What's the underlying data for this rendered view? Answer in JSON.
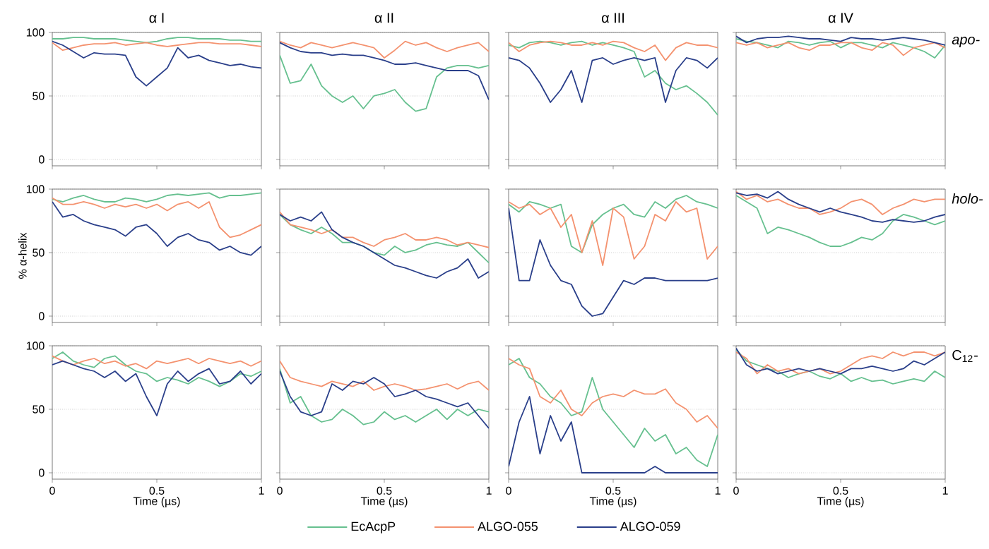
{
  "chart_data": [
    {
      "type": "line",
      "title": "α I",
      "x": [
        0,
        0.05,
        0.1,
        0.15,
        0.2,
        0.25,
        0.3,
        0.35,
        0.4,
        0.45,
        0.5,
        0.55,
        0.6,
        0.65,
        0.7,
        0.75,
        0.8,
        0.85,
        0.9,
        0.95,
        1
      ],
      "xlim": [
        0,
        1
      ],
      "xticks": [
        0,
        0.5,
        1
      ],
      "ylim": [
        -5,
        100
      ],
      "yticks": [
        0,
        50,
        100
      ],
      "grid": "y",
      "tick_labels": "y",
      "series": [
        {
          "color": "#66c08f",
          "values": [
            95,
            95,
            96,
            96,
            95,
            95,
            95,
            94,
            93,
            92,
            93,
            95,
            96,
            96,
            95,
            95,
            95,
            94,
            94,
            93,
            93
          ]
        },
        {
          "color": "#f4926f",
          "values": [
            92,
            86,
            88,
            90,
            91,
            91,
            92,
            90,
            91,
            92,
            90,
            89,
            90,
            91,
            92,
            92,
            91,
            91,
            91,
            90,
            89
          ]
        },
        {
          "color": "#2a3f8a",
          "values": [
            93,
            90,
            85,
            80,
            84,
            83,
            83,
            82,
            65,
            58,
            65,
            72,
            88,
            80,
            82,
            78,
            76,
            74,
            75,
            73,
            72
          ]
        }
      ]
    },
    {
      "type": "line",
      "title": "α II",
      "x": [
        0,
        0.05,
        0.1,
        0.15,
        0.2,
        0.25,
        0.3,
        0.35,
        0.4,
        0.45,
        0.5,
        0.55,
        0.6,
        0.65,
        0.7,
        0.75,
        0.8,
        0.85,
        0.9,
        0.95,
        1
      ],
      "xlim": [
        0,
        1
      ],
      "xticks": [
        0,
        0.5,
        1
      ],
      "ylim": [
        -5,
        100
      ],
      "yticks": [
        0,
        50,
        100
      ],
      "grid": "y",
      "tick_labels": false,
      "series": [
        {
          "color": "#66c08f",
          "values": [
            82,
            60,
            62,
            75,
            58,
            50,
            45,
            50,
            40,
            50,
            52,
            55,
            45,
            38,
            40,
            65,
            72,
            74,
            74,
            72,
            74
          ]
        },
        {
          "color": "#f4926f",
          "values": [
            93,
            90,
            88,
            92,
            90,
            88,
            90,
            92,
            90,
            88,
            80,
            86,
            93,
            90,
            92,
            88,
            85,
            88,
            90,
            92,
            85
          ]
        },
        {
          "color": "#2a3f8a",
          "values": [
            92,
            88,
            85,
            84,
            84,
            82,
            83,
            82,
            82,
            80,
            78,
            75,
            75,
            76,
            74,
            72,
            70,
            70,
            70,
            66,
            47
          ]
        }
      ]
    },
    {
      "type": "line",
      "title": "α III",
      "x": [
        0,
        0.05,
        0.1,
        0.15,
        0.2,
        0.25,
        0.3,
        0.35,
        0.4,
        0.45,
        0.5,
        0.55,
        0.6,
        0.65,
        0.7,
        0.75,
        0.8,
        0.85,
        0.9,
        0.95,
        1
      ],
      "xlim": [
        0,
        1
      ],
      "xticks": [
        0,
        0.5,
        1
      ],
      "ylim": [
        -5,
        100
      ],
      "yticks": [
        0,
        50,
        100
      ],
      "grid": "y",
      "tick_labels": false,
      "series": [
        {
          "color": "#66c08f",
          "values": [
            90,
            88,
            92,
            93,
            92,
            90,
            92,
            93,
            90,
            92,
            90,
            88,
            85,
            65,
            70,
            60,
            55,
            58,
            52,
            45,
            35
          ]
        },
        {
          "color": "#f4926f",
          "values": [
            92,
            85,
            90,
            92,
            93,
            92,
            90,
            90,
            92,
            90,
            93,
            92,
            88,
            85,
            90,
            78,
            88,
            92,
            90,
            90,
            88
          ]
        },
        {
          "color": "#2a3f8a",
          "values": [
            80,
            78,
            72,
            60,
            45,
            55,
            70,
            45,
            78,
            80,
            75,
            78,
            80,
            78,
            80,
            45,
            70,
            80,
            78,
            72,
            80
          ]
        }
      ]
    },
    {
      "type": "line",
      "title": "α IV",
      "annotations": [
        "*apo-*"
      ],
      "x": [
        0,
        0.05,
        0.1,
        0.15,
        0.2,
        0.25,
        0.3,
        0.35,
        0.4,
        0.45,
        0.5,
        0.55,
        0.6,
        0.65,
        0.7,
        0.75,
        0.8,
        0.85,
        0.9,
        0.95,
        1
      ],
      "xlim": [
        0,
        1
      ],
      "xticks": [
        0,
        0.5,
        1
      ],
      "ylim": [
        -5,
        100
      ],
      "yticks": [
        0,
        50,
        100
      ],
      "grid": "y",
      "tick_labels": false,
      "series": [
        {
          "color": "#66c08f",
          "values": [
            95,
            93,
            92,
            90,
            88,
            93,
            92,
            90,
            92,
            93,
            88,
            92,
            92,
            90,
            88,
            92,
            90,
            88,
            85,
            80,
            90
          ]
        },
        {
          "color": "#f4926f",
          "values": [
            92,
            90,
            92,
            88,
            90,
            92,
            88,
            86,
            90,
            90,
            92,
            92,
            88,
            86,
            92,
            90,
            82,
            88,
            90,
            92,
            88
          ]
        },
        {
          "color": "#2a3f8a",
          "values": [
            97,
            92,
            95,
            96,
            96,
            97,
            96,
            95,
            95,
            94,
            93,
            96,
            95,
            95,
            94,
            95,
            96,
            95,
            94,
            92,
            90
          ]
        }
      ]
    },
    {
      "type": "line",
      "ylabel": "% α-helix",
      "x": [
        0,
        0.05,
        0.1,
        0.15,
        0.2,
        0.25,
        0.3,
        0.35,
        0.4,
        0.45,
        0.5,
        0.55,
        0.6,
        0.65,
        0.7,
        0.75,
        0.8,
        0.85,
        0.9,
        0.95,
        1
      ],
      "xlim": [
        0,
        1
      ],
      "xticks": [
        0,
        0.5,
        1
      ],
      "ylim": [
        -5,
        100
      ],
      "yticks": [
        0,
        50,
        100
      ],
      "grid": "y",
      "tick_labels": "y",
      "series": [
        {
          "color": "#66c08f",
          "values": [
            92,
            90,
            93,
            95,
            92,
            90,
            90,
            93,
            92,
            90,
            92,
            95,
            96,
            95,
            96,
            97,
            93,
            95,
            95,
            96,
            97
          ]
        },
        {
          "color": "#f4926f",
          "values": [
            93,
            88,
            88,
            90,
            88,
            85,
            88,
            86,
            88,
            85,
            88,
            83,
            88,
            90,
            85,
            90,
            70,
            62,
            64,
            68,
            72
          ]
        },
        {
          "color": "#2a3f8a",
          "values": [
            90,
            78,
            80,
            75,
            72,
            70,
            68,
            63,
            70,
            72,
            65,
            55,
            62,
            65,
            60,
            58,
            52,
            55,
            50,
            48,
            55
          ]
        }
      ]
    },
    {
      "type": "line",
      "x": [
        0,
        0.05,
        0.1,
        0.15,
        0.2,
        0.25,
        0.3,
        0.35,
        0.4,
        0.45,
        0.5,
        0.55,
        0.6,
        0.65,
        0.7,
        0.75,
        0.8,
        0.85,
        0.9,
        0.95,
        1
      ],
      "xlim": [
        0,
        1
      ],
      "xticks": [
        0,
        0.5,
        1
      ],
      "ylim": [
        -5,
        100
      ],
      "yticks": [
        0,
        50,
        100
      ],
      "grid": "y",
      "tick_labels": false,
      "series": [
        {
          "color": "#66c08f",
          "values": [
            80,
            72,
            68,
            65,
            70,
            65,
            58,
            58,
            55,
            50,
            48,
            55,
            50,
            52,
            56,
            58,
            56,
            55,
            58,
            50,
            42
          ]
        },
        {
          "color": "#f4926f",
          "values": [
            82,
            72,
            70,
            68,
            65,
            68,
            62,
            62,
            58,
            55,
            60,
            62,
            65,
            60,
            60,
            62,
            60,
            56,
            58,
            56,
            54
          ]
        },
        {
          "color": "#2a3f8a",
          "values": [
            80,
            75,
            78,
            75,
            82,
            68,
            62,
            58,
            55,
            50,
            45,
            40,
            38,
            35,
            32,
            30,
            35,
            38,
            45,
            30,
            35
          ]
        }
      ]
    },
    {
      "type": "line",
      "x": [
        0,
        0.05,
        0.1,
        0.15,
        0.2,
        0.25,
        0.3,
        0.35,
        0.4,
        0.45,
        0.5,
        0.55,
        0.6,
        0.65,
        0.7,
        0.75,
        0.8,
        0.85,
        0.9,
        0.95,
        1
      ],
      "xlim": [
        0,
        1
      ],
      "xticks": [
        0,
        0.5,
        1
      ],
      "ylim": [
        -5,
        100
      ],
      "yticks": [
        0,
        50,
        100
      ],
      "grid": "y",
      "tick_labels": false,
      "series": [
        {
          "color": "#66c08f",
          "values": [
            88,
            82,
            90,
            88,
            85,
            88,
            55,
            50,
            72,
            80,
            85,
            88,
            80,
            78,
            90,
            85,
            92,
            95,
            90,
            88,
            85
          ]
        },
        {
          "color": "#f4926f",
          "values": [
            90,
            85,
            88,
            80,
            85,
            70,
            80,
            50,
            75,
            40,
            85,
            78,
            45,
            55,
            80,
            75,
            90,
            82,
            85,
            45,
            55
          ]
        },
        {
          "color": "#2a3f8a",
          "values": [
            85,
            28,
            28,
            60,
            40,
            28,
            25,
            8,
            0,
            2,
            15,
            28,
            25,
            30,
            30,
            28,
            28,
            28,
            28,
            28,
            30
          ]
        }
      ]
    },
    {
      "type": "line",
      "annotations": [
        "*holo-*"
      ],
      "x": [
        0,
        0.05,
        0.1,
        0.15,
        0.2,
        0.25,
        0.3,
        0.35,
        0.4,
        0.45,
        0.5,
        0.55,
        0.6,
        0.65,
        0.7,
        0.75,
        0.8,
        0.85,
        0.9,
        0.95,
        1
      ],
      "xlim": [
        0,
        1
      ],
      "xticks": [
        0,
        0.5,
        1
      ],
      "ylim": [
        -5,
        100
      ],
      "yticks": [
        0,
        50,
        100
      ],
      "grid": "y",
      "tick_labels": false,
      "series": [
        {
          "color": "#66c08f",
          "values": [
            95,
            90,
            85,
            65,
            70,
            68,
            65,
            62,
            58,
            55,
            55,
            58,
            62,
            60,
            65,
            75,
            80,
            78,
            75,
            72,
            75
          ]
        },
        {
          "color": "#f4926f",
          "values": [
            98,
            92,
            95,
            90,
            92,
            88,
            85,
            85,
            80,
            82,
            85,
            90,
            92,
            88,
            80,
            85,
            88,
            92,
            90,
            92,
            92
          ]
        },
        {
          "color": "#2a3f8a",
          "values": [
            97,
            95,
            96,
            93,
            98,
            92,
            88,
            85,
            82,
            85,
            82,
            80,
            78,
            75,
            74,
            76,
            75,
            74,
            75,
            78,
            80
          ]
        }
      ]
    },
    {
      "type": "line",
      "xlabel": "Time (µs)",
      "x": [
        0,
        0.05,
        0.1,
        0.15,
        0.2,
        0.25,
        0.3,
        0.35,
        0.4,
        0.45,
        0.5,
        0.55,
        0.6,
        0.65,
        0.7,
        0.75,
        0.8,
        0.85,
        0.9,
        0.95,
        1
      ],
      "xlim": [
        0,
        1
      ],
      "xticks": [
        0,
        0.5,
        1
      ],
      "ylim": [
        -5,
        100
      ],
      "yticks": [
        0,
        50,
        100
      ],
      "grid": "y",
      "series": [
        {
          "color": "#66c08f",
          "values": [
            90,
            95,
            88,
            85,
            83,
            90,
            92,
            85,
            80,
            78,
            72,
            75,
            73,
            70,
            75,
            72,
            68,
            72,
            78,
            76,
            80
          ]
        },
        {
          "color": "#f4926f",
          "values": [
            92,
            88,
            85,
            88,
            90,
            86,
            88,
            84,
            86,
            82,
            88,
            86,
            88,
            90,
            86,
            90,
            88,
            86,
            88,
            84,
            88
          ]
        },
        {
          "color": "#2a3f8a",
          "values": [
            85,
            88,
            85,
            82,
            80,
            75,
            80,
            72,
            78,
            60,
            45,
            70,
            80,
            72,
            78,
            82,
            70,
            72,
            80,
            70,
            78
          ]
        }
      ]
    },
    {
      "type": "line",
      "xlabel": "Time (µs)",
      "legend": "bottom",
      "x": [
        0,
        0.05,
        0.1,
        0.15,
        0.2,
        0.25,
        0.3,
        0.35,
        0.4,
        0.45,
        0.5,
        0.55,
        0.6,
        0.65,
        0.7,
        0.75,
        0.8,
        0.85,
        0.9,
        0.95,
        1
      ],
      "xlim": [
        0,
        1
      ],
      "xticks": [
        0,
        0.5,
        1
      ],
      "ylim": [
        -5,
        100
      ],
      "yticks": [
        0,
        50,
        100
      ],
      "grid": "y",
      "tick_labels": "x",
      "series": [
        {
          "name": "EcAcpP",
          "color": "#66c08f",
          "values": [
            82,
            55,
            60,
            45,
            40,
            42,
            50,
            45,
            38,
            40,
            48,
            42,
            45,
            40,
            45,
            50,
            42,
            50,
            45,
            50,
            48
          ]
        },
        {
          "name": "ALGO-055",
          "color": "#f4926f",
          "values": [
            88,
            75,
            72,
            70,
            68,
            72,
            70,
            68,
            72,
            65,
            68,
            70,
            68,
            65,
            66,
            68,
            70,
            66,
            70,
            72,
            65
          ]
        },
        {
          "name": "ALGO-059",
          "color": "#2a3f8a",
          "values": [
            80,
            60,
            48,
            45,
            48,
            70,
            65,
            72,
            70,
            75,
            70,
            60,
            62,
            65,
            60,
            58,
            55,
            52,
            55,
            45,
            35
          ]
        }
      ]
    },
    {
      "type": "line",
      "xlabel": "Time (µs)",
      "x": [
        0,
        0.05,
        0.1,
        0.15,
        0.2,
        0.25,
        0.3,
        0.35,
        0.4,
        0.45,
        0.5,
        0.55,
        0.6,
        0.65,
        0.7,
        0.75,
        0.8,
        0.85,
        0.9,
        0.95,
        1
      ],
      "xlim": [
        0,
        1
      ],
      "xticks": [
        0,
        0.5,
        1
      ],
      "ylim": [
        -5,
        100
      ],
      "yticks": [
        0,
        50,
        100
      ],
      "grid": "y",
      "tick_labels": "x",
      "series": [
        {
          "color": "#66c08f",
          "values": [
            85,
            90,
            75,
            70,
            60,
            55,
            45,
            48,
            75,
            50,
            40,
            30,
            20,
            35,
            25,
            30,
            15,
            20,
            10,
            5,
            30
          ]
        },
        {
          "color": "#f4926f",
          "values": [
            90,
            85,
            82,
            60,
            55,
            65,
            50,
            45,
            55,
            60,
            62,
            60,
            65,
            62,
            62,
            66,
            55,
            50,
            40,
            45,
            35
          ]
        },
        {
          "color": "#2a3f8a",
          "values": [
            5,
            40,
            60,
            15,
            45,
            25,
            40,
            0,
            0,
            0,
            0,
            0,
            0,
            0,
            5,
            0,
            0,
            0,
            0,
            0,
            0
          ]
        }
      ]
    },
    {
      "type": "line",
      "xlabel": "Time (µs)",
      "annotations": [
        "C$_{12}$-"
      ],
      "x": [
        0,
        0.05,
        0.1,
        0.15,
        0.2,
        0.25,
        0.3,
        0.35,
        0.4,
        0.45,
        0.5,
        0.55,
        0.6,
        0.65,
        0.7,
        0.75,
        0.8,
        0.85,
        0.9,
        0.95,
        1
      ],
      "xlim": [
        0,
        1
      ],
      "xticks": [
        0,
        0.5,
        1
      ],
      "ylim": [
        -5,
        100
      ],
      "yticks": [
        0,
        50,
        100
      ],
      "grid": "y",
      "tick_labels": "x",
      "series": [
        {
          "color": "#66c08f",
          "values": [
            97,
            88,
            85,
            82,
            80,
            75,
            78,
            80,
            76,
            74,
            78,
            72,
            75,
            72,
            73,
            70,
            72,
            74,
            72,
            80,
            75
          ]
        },
        {
          "color": "#f4926f",
          "values": [
            95,
            90,
            78,
            85,
            80,
            82,
            78,
            80,
            82,
            78,
            80,
            85,
            90,
            92,
            90,
            95,
            92,
            95,
            95,
            92,
            95
          ]
        },
        {
          "color": "#2a3f8a",
          "values": [
            98,
            85,
            80,
            82,
            78,
            80,
            82,
            80,
            82,
            80,
            78,
            82,
            82,
            84,
            82,
            80,
            82,
            88,
            85,
            90,
            95
          ]
        }
      ]
    }
  ]
}
